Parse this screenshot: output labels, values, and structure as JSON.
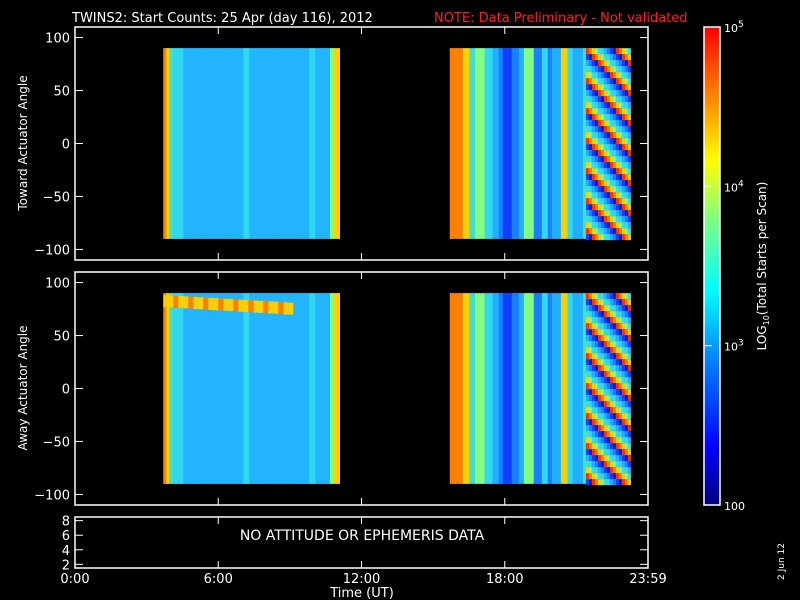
{
  "title": "TWINS2: Start Counts: 25 Apr (day 116), 2012",
  "note": "NOTE: Data Preliminary - Not validated",
  "message": "NO ATTITUDE OR EPHEMERIS DATA",
  "date_stamp": "2 Jun 12",
  "colors": {
    "background": "#000000",
    "axes": "#ffffff",
    "note": "#ff2020"
  },
  "chart_data": [
    {
      "type": "heatmap",
      "name": "toward-panel",
      "ylabel": "Toward Actuator Angle",
      "xlim": [
        0,
        24
      ],
      "ylim": [
        -110,
        110
      ],
      "yticks": [
        "100",
        "50",
        "0",
        "−50",
        "−100"
      ],
      "ytick_values": [
        100,
        50,
        0,
        -50,
        -100
      ],
      "data_ylim": [
        -90,
        90
      ],
      "blocks": [
        {
          "start": 3.7,
          "end": 11.1
        },
        {
          "start": 15.7,
          "end": 23.2
        }
      ]
    },
    {
      "type": "heatmap",
      "name": "away-panel",
      "ylabel": "Away Actuator Angle",
      "xlim": [
        0,
        24
      ],
      "ylim": [
        -110,
        110
      ],
      "yticks": [
        "100",
        "50",
        "0",
        "−50",
        "−100"
      ],
      "ytick_values": [
        100,
        50,
        0,
        -50,
        -100
      ],
      "data_ylim": [
        -90,
        90
      ],
      "blocks": [
        {
          "start": 3.7,
          "end": 11.1
        },
        {
          "start": 15.7,
          "end": 23.2
        }
      ]
    },
    {
      "type": "line",
      "name": "attitude-panel",
      "ylim": [
        1.5,
        8.5
      ],
      "yticks": [
        "8",
        "6",
        "4",
        "2"
      ],
      "ytick_values": [
        8,
        6,
        4,
        2
      ]
    }
  ],
  "xaxis": {
    "label": "Time (UT)",
    "ticks": [
      "0:00",
      "6:00",
      "12:00",
      "18:00",
      "23:59"
    ],
    "tick_values": [
      0,
      6,
      12,
      18,
      24
    ]
  },
  "colorbar": {
    "label_prefix": "LOG",
    "label_sub": "10",
    "label_rest": "(Total Starts per Scan)",
    "scale": "log",
    "range": [
      100,
      100000
    ],
    "ticks": [
      {
        "value": 100000,
        "base": "10",
        "exp": "5"
      },
      {
        "value": 10000,
        "base": "10",
        "exp": "4"
      },
      {
        "value": 1000,
        "base": "10",
        "exp": "3"
      },
      {
        "value": 100,
        "base": "100",
        "exp": ""
      }
    ]
  }
}
